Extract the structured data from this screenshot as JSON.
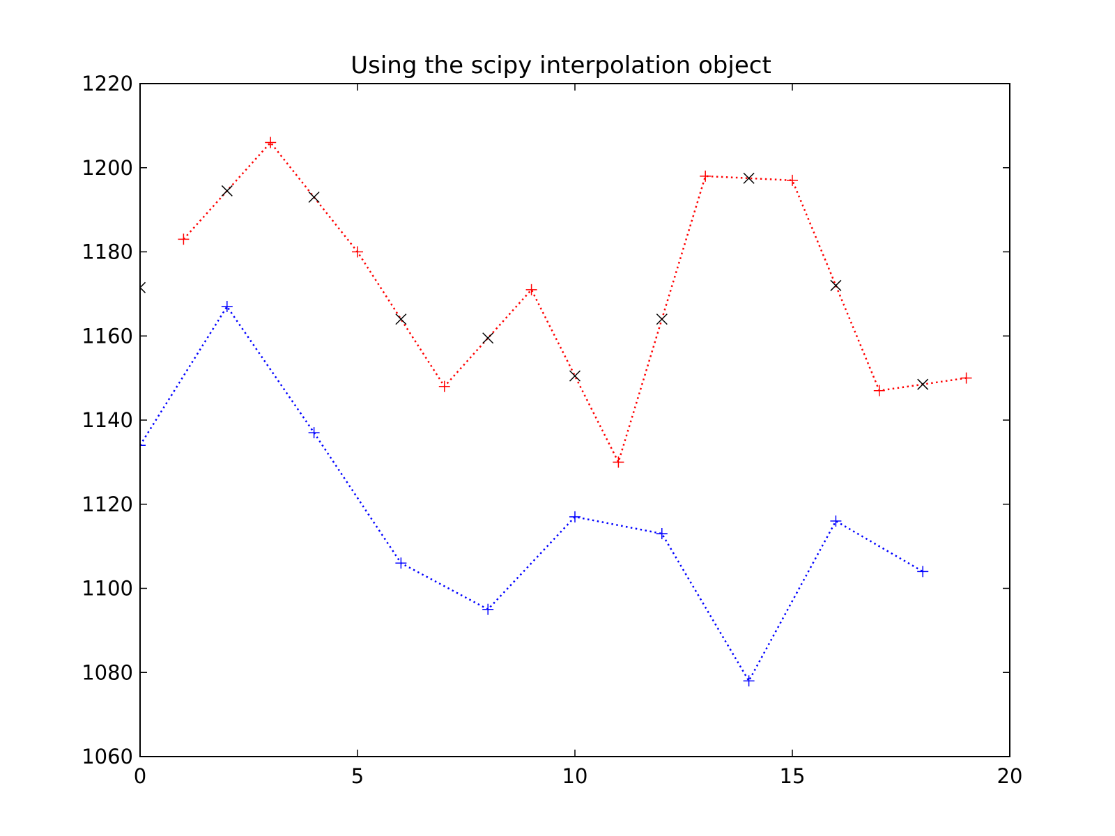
{
  "chart_data": {
    "type": "line",
    "title": "Using the scipy interpolation object",
    "xlabel": "",
    "ylabel": "",
    "xlim": [
      0,
      20
    ],
    "ylim": [
      1060,
      1220
    ],
    "x_ticks": [
      "0",
      "5",
      "10",
      "15",
      "20"
    ],
    "x_tick_values": [
      0,
      5,
      10,
      15,
      20
    ],
    "y_ticks": [
      "1060",
      "1080",
      "1100",
      "1120",
      "1140",
      "1160",
      "1180",
      "1200",
      "1220"
    ],
    "y_tick_values": [
      1060,
      1080,
      1100,
      1120,
      1140,
      1160,
      1180,
      1200,
      1220
    ],
    "grid": false,
    "legend": "none",
    "series": [
      {
        "color": "#0000ff",
        "line_style": "dotted",
        "marker": "+",
        "points": [
          [
            0,
            1134
          ],
          [
            2,
            1167
          ],
          [
            4,
            1137
          ],
          [
            6,
            1106
          ],
          [
            8,
            1095
          ],
          [
            10,
            1117
          ],
          [
            12,
            1113
          ],
          [
            14,
            1078
          ],
          [
            16,
            1116
          ],
          [
            18,
            1104
          ]
        ]
      },
      {
        "color": "#ff0000",
        "line_style": "dotted",
        "marker": "+",
        "points": [
          [
            1,
            1183
          ],
          [
            3,
            1206
          ],
          [
            5,
            1180
          ],
          [
            7,
            1148
          ],
          [
            9,
            1171
          ],
          [
            11,
            1130
          ],
          [
            13,
            1198
          ],
          [
            15,
            1197
          ],
          [
            17,
            1147
          ],
          [
            19,
            1150
          ]
        ]
      },
      {
        "color": "#000000",
        "line_style": "none",
        "marker": "x",
        "points": [
          [
            0,
            1171.5
          ],
          [
            2,
            1194.5
          ],
          [
            4,
            1193
          ],
          [
            6,
            1164
          ],
          [
            8,
            1159.5
          ],
          [
            10,
            1150.5
          ],
          [
            12,
            1164
          ],
          [
            14,
            1197.5
          ],
          [
            16,
            1172
          ],
          [
            18,
            1148.5
          ]
        ]
      }
    ]
  }
}
